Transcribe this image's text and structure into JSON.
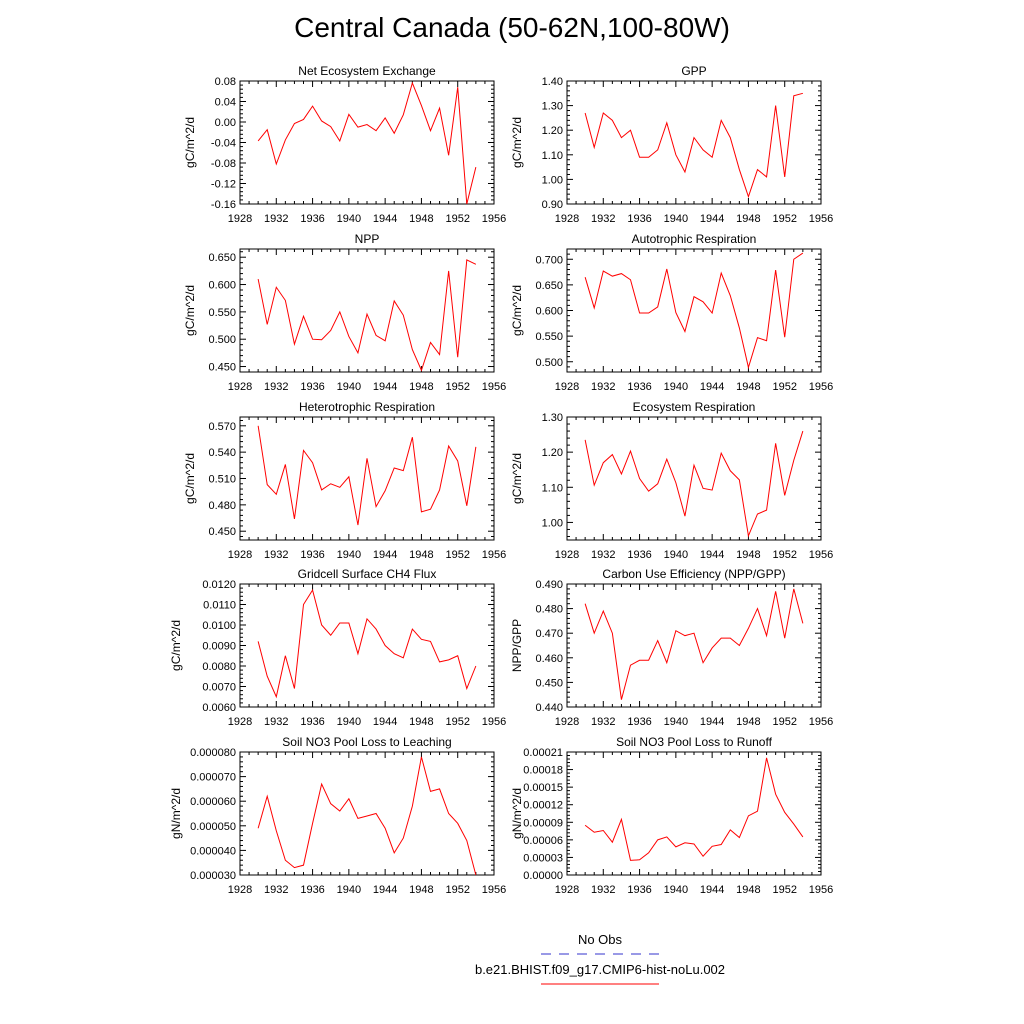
{
  "figure": {
    "title": "Central Canada (50-62N,100-80W)",
    "line_color": "#ff0000",
    "obs_color": "#3333cc"
  },
  "legend": {
    "obs_label": "No Obs",
    "model_label": "b.e21.BHIST.f09_g17.CMIP6-hist-noLu.002"
  },
  "chart_data": [
    {
      "type": "line",
      "title": "Net Ecosystem Exchange",
      "ylabel": "gC/m^2/d",
      "xlim": [
        1928,
        1956
      ],
      "xticks": [
        1928,
        1932,
        1936,
        1940,
        1944,
        1948,
        1952,
        1956
      ],
      "ylim": [
        -0.16,
        0.08
      ],
      "yticks": [
        "-0.16",
        "-0.12",
        "-0.08",
        "-0.04",
        "0.00",
        "0.04",
        "0.08"
      ],
      "x": [
        1930,
        1931,
        1932,
        1933,
        1934,
        1935,
        1936,
        1937,
        1938,
        1939,
        1940,
        1941,
        1942,
        1943,
        1944,
        1945,
        1946,
        1947,
        1948,
        1949,
        1950,
        1951,
        1952,
        1953,
        1954
      ],
      "y": [
        -0.037,
        -0.015,
        -0.082,
        -0.035,
        -0.003,
        0.005,
        0.031,
        0.002,
        -0.009,
        -0.037,
        0.015,
        -0.01,
        -0.005,
        -0.017,
        0.008,
        -0.022,
        0.014,
        0.076,
        0.032,
        -0.017,
        0.027,
        -0.065,
        0.068,
        -0.16,
        -0.088
      ]
    },
    {
      "type": "line",
      "title": "GPP",
      "ylabel": "gC/m^2/d",
      "xlim": [
        1928,
        1956
      ],
      "xticks": [
        1928,
        1932,
        1936,
        1940,
        1944,
        1948,
        1952,
        1956
      ],
      "ylim": [
        0.9,
        1.4
      ],
      "yticks": [
        "0.90",
        "1.00",
        "1.10",
        "1.20",
        "1.30",
        "1.40"
      ],
      "x": [
        1930,
        1931,
        1932,
        1933,
        1934,
        1935,
        1936,
        1937,
        1938,
        1939,
        1940,
        1941,
        1942,
        1943,
        1944,
        1945,
        1946,
        1947,
        1948,
        1949,
        1950,
        1951,
        1952,
        1953,
        1954
      ],
      "y": [
        1.27,
        1.13,
        1.27,
        1.24,
        1.17,
        1.2,
        1.09,
        1.09,
        1.12,
        1.23,
        1.1,
        1.03,
        1.17,
        1.12,
        1.09,
        1.24,
        1.17,
        1.04,
        0.93,
        1.04,
        1.01,
        1.3,
        1.01,
        1.34,
        1.35
      ]
    },
    {
      "type": "line",
      "title": "NPP",
      "ylabel": "gC/m^2/d",
      "xlim": [
        1928,
        1956
      ],
      "xticks": [
        1928,
        1932,
        1936,
        1940,
        1944,
        1948,
        1952,
        1956
      ],
      "ylim": [
        0.44,
        0.665
      ],
      "yticks": [
        "0.450",
        "0.500",
        "0.550",
        "0.600",
        "0.650"
      ],
      "x": [
        1930,
        1931,
        1932,
        1933,
        1934,
        1935,
        1936,
        1937,
        1938,
        1939,
        1940,
        1941,
        1942,
        1943,
        1944,
        1945,
        1946,
        1947,
        1948,
        1949,
        1950,
        1951,
        1952,
        1953,
        1954
      ],
      "y": [
        0.61,
        0.527,
        0.595,
        0.571,
        0.491,
        0.542,
        0.5,
        0.499,
        0.516,
        0.55,
        0.505,
        0.475,
        0.546,
        0.507,
        0.497,
        0.57,
        0.544,
        0.481,
        0.443,
        0.494,
        0.472,
        0.625,
        0.467,
        0.645,
        0.637
      ]
    },
    {
      "type": "line",
      "title": "Autotrophic Respiration",
      "ylabel": "gC/m^2/d",
      "xlim": [
        1928,
        1956
      ],
      "xticks": [
        1928,
        1932,
        1936,
        1940,
        1944,
        1948,
        1952,
        1956
      ],
      "ylim": [
        0.48,
        0.72
      ],
      "yticks": [
        "0.500",
        "0.550",
        "0.600",
        "0.650",
        "0.700"
      ],
      "x": [
        1930,
        1931,
        1932,
        1933,
        1934,
        1935,
        1936,
        1937,
        1938,
        1939,
        1940,
        1941,
        1942,
        1943,
        1944,
        1945,
        1946,
        1947,
        1948,
        1949,
        1950,
        1951,
        1952,
        1953,
        1954
      ],
      "y": [
        0.665,
        0.605,
        0.677,
        0.667,
        0.672,
        0.66,
        0.595,
        0.595,
        0.607,
        0.681,
        0.596,
        0.559,
        0.627,
        0.617,
        0.595,
        0.673,
        0.629,
        0.566,
        0.489,
        0.547,
        0.541,
        0.679,
        0.548,
        0.7,
        0.712
      ]
    },
    {
      "type": "line",
      "title": "Heterotrophic Respiration",
      "ylabel": "gC/m^2/d",
      "xlim": [
        1928,
        1956
      ],
      "xticks": [
        1928,
        1932,
        1936,
        1940,
        1944,
        1948,
        1952,
        1956
      ],
      "ylim": [
        0.44,
        0.58
      ],
      "yticks": [
        "0.450",
        "0.480",
        "0.510",
        "0.540",
        "0.570"
      ],
      "x": [
        1930,
        1931,
        1932,
        1933,
        1934,
        1935,
        1936,
        1937,
        1938,
        1939,
        1940,
        1941,
        1942,
        1943,
        1944,
        1945,
        1946,
        1947,
        1948,
        1949,
        1950,
        1951,
        1952,
        1953,
        1954
      ],
      "y": [
        0.57,
        0.503,
        0.492,
        0.526,
        0.464,
        0.542,
        0.528,
        0.497,
        0.504,
        0.5,
        0.512,
        0.457,
        0.533,
        0.478,
        0.496,
        0.522,
        0.519,
        0.557,
        0.472,
        0.475,
        0.497,
        0.547,
        0.53,
        0.479,
        0.546
      ]
    },
    {
      "type": "line",
      "title": "Ecosystem Respiration",
      "ylabel": "gC/m^2/d",
      "xlim": [
        1928,
        1956
      ],
      "xticks": [
        1928,
        1932,
        1936,
        1940,
        1944,
        1948,
        1952,
        1956
      ],
      "ylim": [
        0.95,
        1.3
      ],
      "yticks": [
        "1.00",
        "1.10",
        "1.20",
        "1.30"
      ],
      "x": [
        1930,
        1931,
        1932,
        1933,
        1934,
        1935,
        1936,
        1937,
        1938,
        1939,
        1940,
        1941,
        1942,
        1943,
        1944,
        1945,
        1946,
        1947,
        1948,
        1949,
        1950,
        1951,
        1952,
        1953,
        1954
      ],
      "y": [
        1.235,
        1.106,
        1.17,
        1.193,
        1.138,
        1.203,
        1.125,
        1.089,
        1.11,
        1.18,
        1.113,
        1.018,
        1.163,
        1.097,
        1.092,
        1.197,
        1.147,
        1.121,
        0.962,
        1.024,
        1.035,
        1.225,
        1.077,
        1.177,
        1.26
      ]
    },
    {
      "type": "line",
      "title": "Gridcell Surface CH4 Flux",
      "ylabel": "gC/m^2/d",
      "xlim": [
        1928,
        1956
      ],
      "xticks": [
        1928,
        1932,
        1936,
        1940,
        1944,
        1948,
        1952,
        1956
      ],
      "ylim": [
        0.006,
        0.012
      ],
      "yticks": [
        "0.0060",
        "0.0070",
        "0.0080",
        "0.0090",
        "0.0100",
        "0.0110",
        "0.0120"
      ],
      "x": [
        1930,
        1931,
        1932,
        1933,
        1934,
        1935,
        1936,
        1937,
        1938,
        1939,
        1940,
        1941,
        1942,
        1943,
        1944,
        1945,
        1946,
        1947,
        1948,
        1949,
        1950,
        1951,
        1952,
        1953,
        1954
      ],
      "y": [
        0.0092,
        0.0075,
        0.0065,
        0.0085,
        0.0069,
        0.011,
        0.0117,
        0.01,
        0.0095,
        0.0101,
        0.0101,
        0.0086,
        0.0103,
        0.0098,
        0.009,
        0.0086,
        0.0084,
        0.0098,
        0.0093,
        0.0092,
        0.0082,
        0.0083,
        0.0085,
        0.0069,
        0.008
      ]
    },
    {
      "type": "line",
      "title": "Carbon Use Efficiency (NPP/GPP)",
      "ylabel": "NPP/GPP",
      "xlim": [
        1928,
        1956
      ],
      "xticks": [
        1928,
        1932,
        1936,
        1940,
        1944,
        1948,
        1952,
        1956
      ],
      "ylim": [
        0.44,
        0.49
      ],
      "yticks": [
        "0.440",
        "0.450",
        "0.460",
        "0.470",
        "0.480",
        "0.490"
      ],
      "x": [
        1930,
        1931,
        1932,
        1933,
        1934,
        1935,
        1936,
        1937,
        1938,
        1939,
        1940,
        1941,
        1942,
        1943,
        1944,
        1945,
        1946,
        1947,
        1948,
        1949,
        1950,
        1951,
        1952,
        1953,
        1954
      ],
      "y": [
        0.482,
        0.47,
        0.479,
        0.47,
        0.443,
        0.457,
        0.459,
        0.459,
        0.467,
        0.458,
        0.471,
        0.469,
        0.47,
        0.458,
        0.464,
        0.468,
        0.468,
        0.465,
        0.472,
        0.48,
        0.469,
        0.487,
        0.468,
        0.488,
        0.474
      ]
    },
    {
      "type": "line",
      "title": "Soil NO3 Pool Loss to Leaching",
      "ylabel": "gN/m^2/d",
      "xlim": [
        1928,
        1956
      ],
      "xticks": [
        1928,
        1932,
        1936,
        1940,
        1944,
        1948,
        1952,
        1956
      ],
      "ylim": [
        3e-05,
        8e-05
      ],
      "yticks": [
        "0.000030",
        "0.000040",
        "0.000050",
        "0.000060",
        "0.000070",
        "0.000080"
      ],
      "x": [
        1930,
        1931,
        1932,
        1933,
        1934,
        1935,
        1936,
        1937,
        1938,
        1939,
        1940,
        1941,
        1942,
        1943,
        1944,
        1945,
        1946,
        1947,
        1948,
        1949,
        1950,
        1951,
        1952,
        1953,
        1954
      ],
      "y": [
        4.9e-05,
        6.2e-05,
        4.8e-05,
        3.6e-05,
        3.3e-05,
        3.4e-05,
        5.1e-05,
        6.7e-05,
        5.9e-05,
        5.6e-05,
        6.1e-05,
        5.3e-05,
        5.4e-05,
        5.5e-05,
        4.9e-05,
        3.9e-05,
        4.5e-05,
        5.8e-05,
        7.8e-05,
        6.4e-05,
        6.5e-05,
        5.5e-05,
        5.1e-05,
        4.4e-05,
        3e-05
      ]
    },
    {
      "type": "line",
      "title": "Soil NO3 Pool Loss to Runoff",
      "ylabel": "gN/m^2/d",
      "xlim": [
        1928,
        1956
      ],
      "xticks": [
        1928,
        1932,
        1936,
        1940,
        1944,
        1948,
        1952,
        1956
      ],
      "ylim": [
        0,
        0.00021
      ],
      "yticks": [
        "0.00000",
        "0.00003",
        "0.00006",
        "0.00009",
        "0.00012",
        "0.00015",
        "0.00018",
        "0.00021"
      ],
      "x": [
        1930,
        1931,
        1932,
        1933,
        1934,
        1935,
        1936,
        1937,
        1938,
        1939,
        1940,
        1941,
        1942,
        1943,
        1944,
        1945,
        1946,
        1947,
        1948,
        1949,
        1950,
        1951,
        1952,
        1953,
        1954
      ],
      "y": [
        8.5e-05,
        7.3e-05,
        7.6e-05,
        5.6e-05,
        9.5e-05,
        2.5e-05,
        2.6e-05,
        3.8e-05,
        6e-05,
        6.5e-05,
        4.8e-05,
        5.5e-05,
        5.3e-05,
        3.2e-05,
        4.9e-05,
        5.2e-05,
        7.7e-05,
        6.4e-05,
        0.000101,
        0.000109,
        0.0002,
        0.000138,
        0.000107,
        8.7e-05,
        6.5e-05
      ]
    }
  ]
}
